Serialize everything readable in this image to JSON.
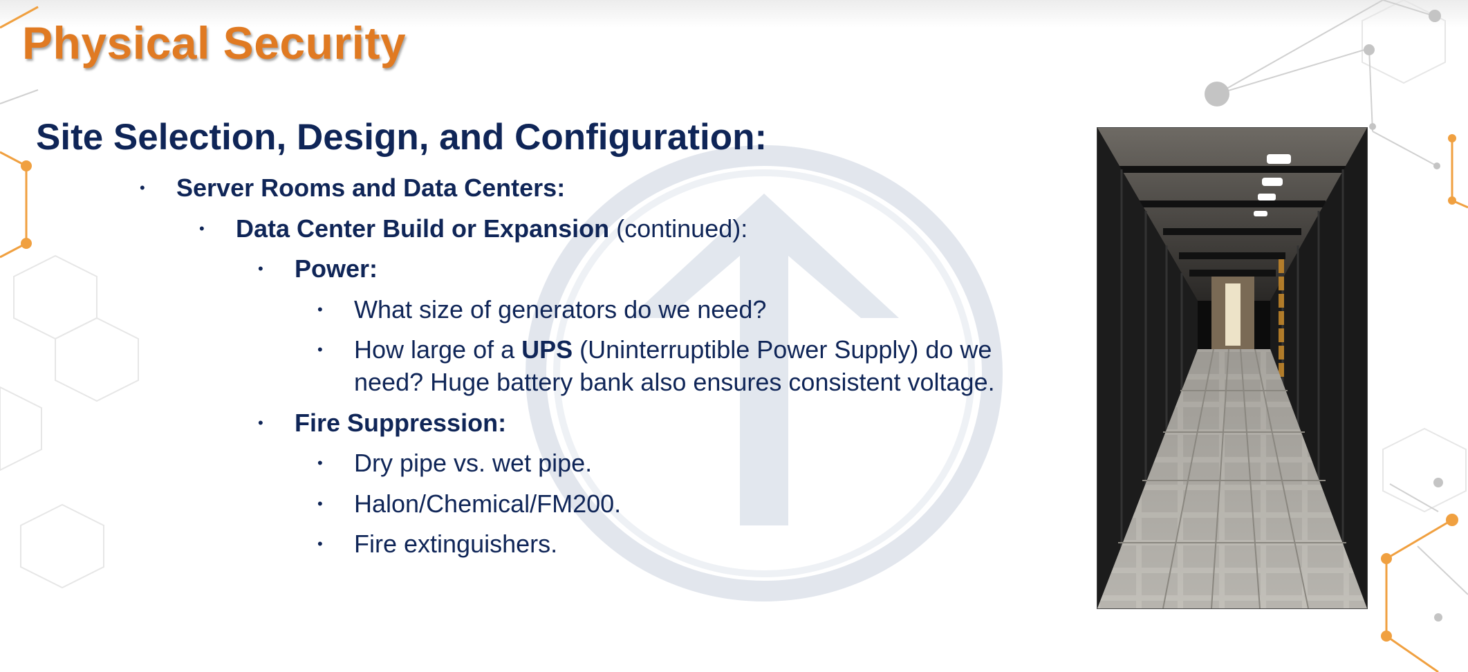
{
  "slide": {
    "title": "Physical Security",
    "heading": "Site Selection, Design, and Configuration:"
  },
  "bullets": {
    "l1": {
      "text": "Server Rooms and Data Centers:"
    },
    "l2": {
      "bold": "Data Center Build or Expansion",
      "rest": " (continued):"
    },
    "power": {
      "text": "Power:"
    },
    "power_q1": {
      "text": "What size of generators do we need?"
    },
    "power_q2": {
      "pre": "How large of a ",
      "bold": "UPS",
      "post": " (Uninterruptible Power Supply) do we",
      "line2": "need? Huge battery bank also ensures consistent voltage."
    },
    "fire": {
      "text": "Fire Suppression:"
    },
    "fire_1": {
      "text": "Dry pipe vs. wet pipe."
    },
    "fire_2": {
      "text": "Halon/Chemical/FM200."
    },
    "fire_3": {
      "text": "Fire extinguishers."
    }
  },
  "colors": {
    "title": "#e07a22",
    "text": "#0f2557",
    "accent_orange": "#f0a040",
    "network_gray": "#c8c8c8"
  },
  "images": {
    "photo": "data-center-corridor-photo",
    "watermark": "circled-up-arrow-logo"
  }
}
